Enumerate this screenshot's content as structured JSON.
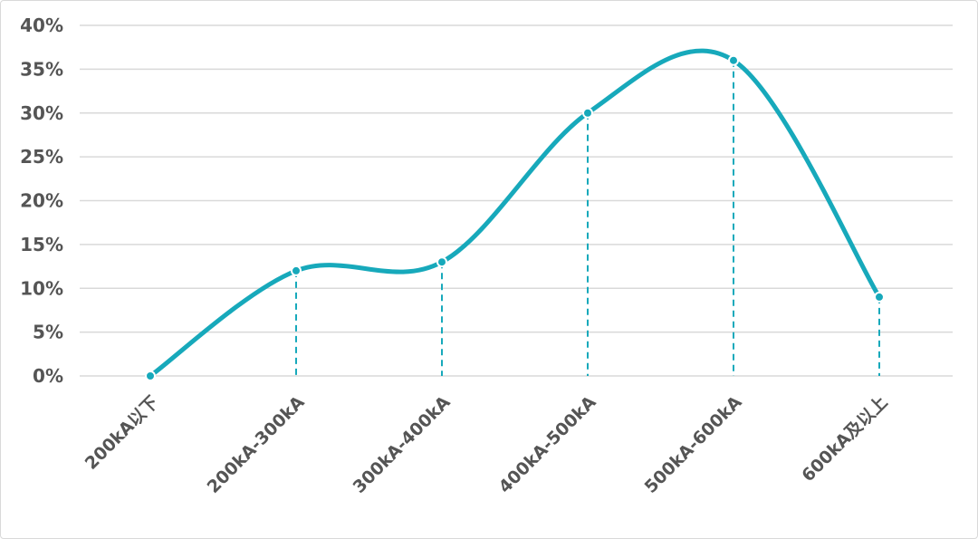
{
  "chart_data": {
    "type": "line",
    "title": "",
    "xlabel": "",
    "ylabel": "",
    "categories": [
      "200kA以下",
      "200kA-300kA",
      "300kA-400kA",
      "400kA-500kA",
      "500kA-600kA",
      "600kA及以上"
    ],
    "series": [
      {
        "values": [
          0,
          12,
          13,
          30,
          36,
          9
        ]
      }
    ],
    "ylim": [
      0,
      40
    ],
    "yticks": [
      "0%",
      "5%",
      "10%",
      "15%",
      "20%",
      "25%",
      "30%",
      "35%",
      "40%"
    ],
    "grid": "horizontal",
    "smooth": true,
    "drop_lines": "dashed",
    "colors": {
      "line": "#17a9bb",
      "grid": "#d9d9d9",
      "text": "#555555"
    }
  }
}
